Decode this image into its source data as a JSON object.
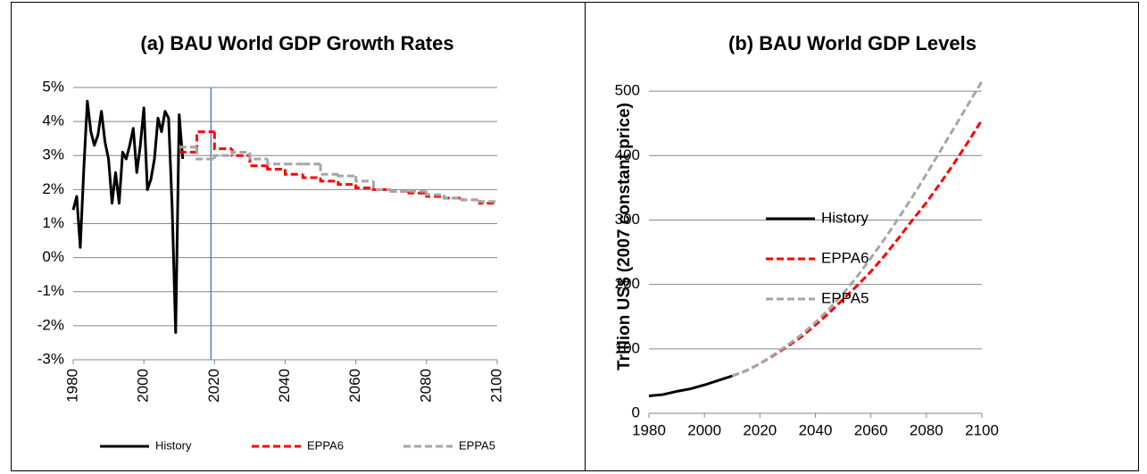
{
  "chart_data": [
    {
      "type": "line",
      "title": "(a) BAU World GDP Growth Rates",
      "xlim": [
        1980,
        2100
      ],
      "xticks": [
        1980,
        2000,
        2020,
        2040,
        2060,
        2080,
        2100
      ],
      "ylim": [
        -3,
        5
      ],
      "yticks": [
        {
          "value": -3,
          "label": "-3%"
        },
        {
          "value": -2,
          "label": "-2%"
        },
        {
          "value": -1,
          "label": "-1%"
        },
        {
          "value": 0,
          "label": "0%"
        },
        {
          "value": 1,
          "label": "1%"
        },
        {
          "value": 2,
          "label": "2%"
        },
        {
          "value": 3,
          "label": "3%"
        },
        {
          "value": 4,
          "label": "4%"
        },
        {
          "value": 5,
          "label": "5%"
        }
      ],
      "grid": true,
      "legend": "bottom",
      "reference_line": {
        "x": 2019,
        "color": "#4f81bd"
      },
      "series": [
        {
          "name": "History",
          "color": "#000000",
          "x": [
            1980,
            1981,
            1982,
            1983,
            1984,
            1985,
            1986,
            1987,
            1988,
            1989,
            1990,
            1991,
            1992,
            1993,
            1994,
            1995,
            1996,
            1997,
            1998,
            1999,
            2000,
            2001,
            2002,
            2003,
            2004,
            2005,
            2006,
            2007,
            2008,
            2009,
            2010,
            2011
          ],
          "values": [
            1.4,
            1.8,
            0.3,
            2.6,
            4.6,
            3.7,
            3.3,
            3.6,
            4.3,
            3.4,
            2.9,
            1.6,
            2.5,
            1.6,
            3.1,
            2.9,
            3.3,
            3.8,
            2.5,
            3.3,
            4.4,
            2.0,
            2.3,
            2.9,
            4.1,
            3.7,
            4.3,
            4.1,
            1.5,
            -2.2,
            4.2,
            2.9
          ]
        },
        {
          "name": "EPPA6",
          "color": "#ff0000",
          "dashed": true,
          "step": true,
          "x": [
            2010,
            2015,
            2020,
            2025,
            2030,
            2035,
            2040,
            2045,
            2050,
            2055,
            2060,
            2065,
            2070,
            2075,
            2080,
            2085,
            2090,
            2095
          ],
          "values": [
            3.1,
            3.7,
            3.2,
            3.0,
            2.7,
            2.6,
            2.45,
            2.35,
            2.25,
            2.15,
            2.05,
            2.0,
            1.95,
            1.9,
            1.8,
            1.75,
            1.7,
            1.6
          ]
        },
        {
          "name": "EPPA5",
          "color": "#a6a6a6",
          "dashed": true,
          "step": true,
          "x": [
            2010,
            2015,
            2020,
            2025,
            2030,
            2035,
            2040,
            2045,
            2050,
            2055,
            2060,
            2065,
            2070,
            2075,
            2080,
            2085,
            2090,
            2095
          ],
          "values": [
            3.25,
            2.9,
            3.0,
            3.1,
            2.9,
            2.75,
            2.75,
            2.75,
            2.45,
            2.4,
            2.25,
            2.0,
            1.95,
            1.95,
            1.85,
            1.75,
            1.7,
            1.65
          ]
        }
      ]
    },
    {
      "type": "line",
      "title": "(b) BAU World GDP Levels",
      "y_label": "Trillion US$ (2007 constant price)",
      "xlim": [
        1980,
        2100
      ],
      "xticks": [
        1980,
        2000,
        2020,
        2040,
        2060,
        2080,
        2100
      ],
      "ylim": [
        0,
        550
      ],
      "yticks": [
        0,
        100,
        200,
        300,
        400,
        500
      ],
      "grid": true,
      "legend": "left",
      "series": [
        {
          "name": "History",
          "color": "#000000",
          "x": [
            1980,
            1985,
            1990,
            1995,
            2000,
            2005,
            2010
          ],
          "values": [
            27,
            29,
            34,
            38,
            44,
            51,
            58
          ]
        },
        {
          "name": "EPPA6",
          "color": "#ff0000",
          "dashed": true,
          "x": [
            2010,
            2015,
            2020,
            2025,
            2030,
            2035,
            2040,
            2045,
            2050,
            2055,
            2060,
            2065,
            2070,
            2075,
            2080,
            2085,
            2090,
            2095,
            2100
          ],
          "values": [
            58,
            66,
            77,
            90,
            104,
            119,
            137,
            156,
            177,
            198,
            220,
            245,
            272,
            300,
            327,
            357,
            388,
            421,
            455
          ]
        },
        {
          "name": "EPPA5",
          "color": "#a6a6a6",
          "dashed": true,
          "x": [
            2010,
            2015,
            2020,
            2025,
            2030,
            2035,
            2040,
            2045,
            2050,
            2055,
            2060,
            2065,
            2070,
            2075,
            2080,
            2085,
            2090,
            2095,
            2100
          ],
          "values": [
            58,
            66,
            77,
            91,
            106,
            122,
            141,
            162,
            186,
            212,
            241,
            271,
            303,
            336,
            371,
            407,
            443,
            479,
            515
          ]
        }
      ]
    }
  ]
}
